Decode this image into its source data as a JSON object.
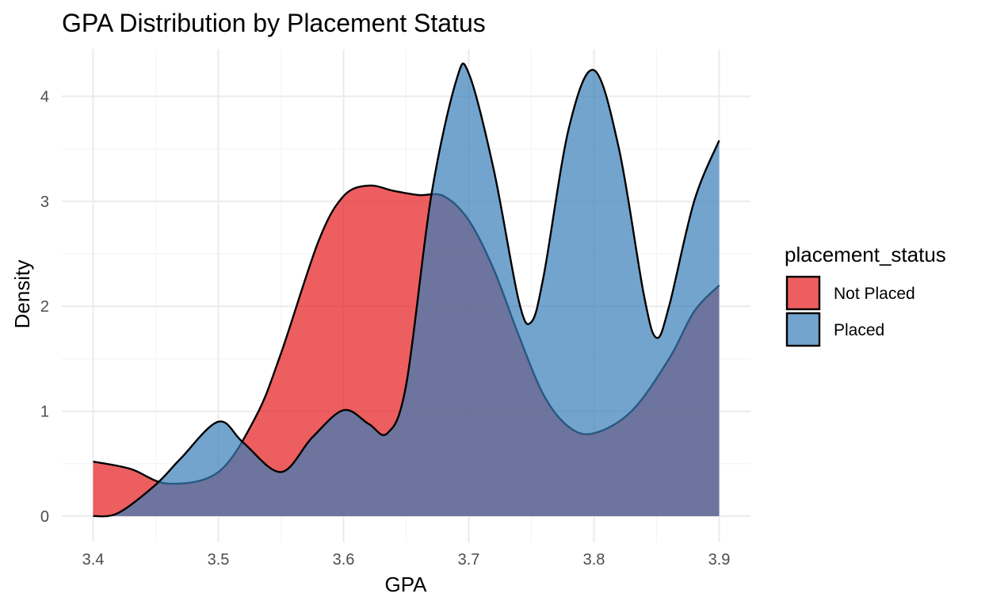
{
  "chart_data": {
    "type": "area",
    "title": "GPA Distribution by Placement Status",
    "xlabel": "GPA",
    "ylabel": "Density",
    "xlim": [
      3.375,
      3.925
    ],
    "ylim": [
      -0.25,
      4.45
    ],
    "x_ticks": [
      "3.4",
      "3.5",
      "3.6",
      "3.7",
      "3.8",
      "3.9"
    ],
    "x_tick_values": [
      3.4,
      3.5,
      3.6,
      3.7,
      3.8,
      3.9
    ],
    "y_ticks": [
      "0",
      "1",
      "2",
      "3",
      "4"
    ],
    "y_tick_values": [
      0,
      1,
      2,
      3,
      4
    ],
    "grid": true,
    "legend": {
      "title": "placement_status",
      "position": "right"
    },
    "series": [
      {
        "name": "Not Placed",
        "color": "#E41A1C",
        "opacity": 0.7,
        "x": [
          3.4,
          3.43,
          3.46,
          3.5,
          3.53,
          3.55,
          3.58,
          3.6,
          3.62,
          3.64,
          3.66,
          3.68,
          3.7,
          3.72,
          3.74,
          3.76,
          3.78,
          3.8,
          3.83,
          3.86,
          3.88,
          3.9
        ],
        "y": [
          0.52,
          0.45,
          0.31,
          0.42,
          0.95,
          1.55,
          2.62,
          3.05,
          3.15,
          3.1,
          3.06,
          3.05,
          2.82,
          2.35,
          1.72,
          1.15,
          0.85,
          0.79,
          1.0,
          1.5,
          1.95,
          2.2
        ]
      },
      {
        "name": "Placed",
        "color": "#377EB8",
        "opacity": 0.7,
        "x": [
          3.4,
          3.42,
          3.45,
          3.47,
          3.5,
          3.52,
          3.55,
          3.575,
          3.6,
          3.62,
          3.635,
          3.65,
          3.67,
          3.69,
          3.7,
          3.72,
          3.74,
          3.75,
          3.76,
          3.78,
          3.8,
          3.82,
          3.84,
          3.85,
          3.86,
          3.88,
          3.9
        ],
        "y": [
          0.0,
          0.03,
          0.3,
          0.55,
          0.9,
          0.7,
          0.42,
          0.75,
          1.01,
          0.88,
          0.79,
          1.25,
          3.05,
          4.15,
          4.22,
          3.3,
          2.05,
          1.85,
          2.3,
          3.7,
          4.25,
          3.5,
          2.1,
          1.7,
          2.0,
          3.0,
          3.58
        ]
      }
    ]
  }
}
